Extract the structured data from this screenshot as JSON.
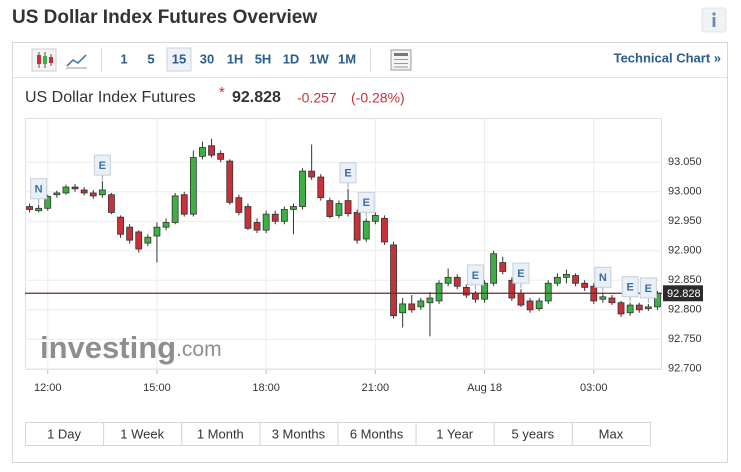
{
  "page_title": "US Dollar Index Futures Overview",
  "toolbar": {
    "intervals": [
      "1",
      "5",
      "15",
      "30",
      "1H",
      "5H",
      "1D",
      "1W",
      "1M"
    ],
    "active": "15",
    "link": "Technical Chart »"
  },
  "quote": {
    "name": "US Dollar Index Futures",
    "marker": "*",
    "change": -0.257,
    "change_pct": "(-0.28%)"
  },
  "watermark": [
    "investing",
    ".com"
  ],
  "ranges": [
    "1 Day",
    "1 Week",
    "1 Month",
    "3 Months",
    "6 Months",
    "1 Year",
    "5 years",
    "Max"
  ],
  "chart_data": {
    "type": "candlestick",
    "categories": [
      null,
      null,
      "12:00",
      null,
      null,
      null,
      null,
      null,
      null,
      null,
      null,
      null,
      null,
      null,
      "15:00",
      null,
      null,
      null,
      null,
      null,
      null,
      null,
      null,
      null,
      null,
      null,
      "18:00",
      null,
      null,
      null,
      null,
      null,
      null,
      null,
      null,
      null,
      null,
      null,
      "21:00",
      null,
      null,
      null,
      null,
      null,
      null,
      null,
      null,
      null,
      null,
      null,
      "Aug 18",
      null,
      null,
      null,
      null,
      null,
      null,
      null,
      null,
      null,
      null,
      null,
      "03:00",
      null,
      null,
      null,
      null,
      null,
      null,
      null
    ],
    "open": [
      92.975,
      92.968,
      92.972,
      92.995,
      92.998,
      93.008,
      93.003,
      92.998,
      92.995,
      92.995,
      92.957,
      92.94,
      92.932,
      92.913,
      92.925,
      92.94,
      92.948,
      92.995,
      92.962,
      93.06,
      93.078,
      93.065,
      93.052,
      92.99,
      92.975,
      92.948,
      92.935,
      92.962,
      92.95,
      92.97,
      92.975,
      93.035,
      93.025,
      92.985,
      92.96,
      92.985,
      92.965,
      92.92,
      92.95,
      92.955,
      92.91,
      92.795,
      92.81,
      92.805,
      92.812,
      92.815,
      92.845,
      92.855,
      92.838,
      92.828,
      92.818,
      92.845,
      92.88,
      92.85,
      92.828,
      92.815,
      92.802,
      92.815,
      92.845,
      92.855,
      92.858,
      92.845,
      92.84,
      92.818,
      92.82,
      92.812,
      92.795,
      92.808,
      92.802,
      92.805
    ],
    "high": [
      92.98,
      92.978,
      92.995,
      93.002,
      93.012,
      93.013,
      93.008,
      93.003,
      93.018,
      92.998,
      92.96,
      92.945,
      92.935,
      92.928,
      92.948,
      92.955,
      92.998,
      93.0,
      93.07,
      93.085,
      93.09,
      93.07,
      93.055,
      92.995,
      92.98,
      92.955,
      92.968,
      92.968,
      92.975,
      92.98,
      93.04,
      93.08,
      93.03,
      92.99,
      92.985,
      93.005,
      92.97,
      92.955,
      92.965,
      92.96,
      92.915,
      92.82,
      92.825,
      92.82,
      92.83,
      92.85,
      92.87,
      92.86,
      92.843,
      92.832,
      92.85,
      92.9,
      92.89,
      92.855,
      92.835,
      92.82,
      92.82,
      92.85,
      92.862,
      92.868,
      92.862,
      92.85,
      92.845,
      92.828,
      92.825,
      92.815,
      92.812,
      92.812,
      92.81,
      92.832
    ],
    "low": [
      92.965,
      92.965,
      92.968,
      92.99,
      92.995,
      93.0,
      92.994,
      92.988,
      92.99,
      92.962,
      92.922,
      92.912,
      92.897,
      92.908,
      92.88,
      92.935,
      92.945,
      92.958,
      92.958,
      93.055,
      93.058,
      93.05,
      92.978,
      92.96,
      92.935,
      92.93,
      92.93,
      92.945,
      92.945,
      92.928,
      92.97,
      93.02,
      92.985,
      92.955,
      92.955,
      92.958,
      92.912,
      92.915,
      92.945,
      92.91,
      92.785,
      92.77,
      92.795,
      92.8,
      92.755,
      92.81,
      92.84,
      92.835,
      92.82,
      92.812,
      92.812,
      92.84,
      92.86,
      92.815,
      92.805,
      92.795,
      92.798,
      92.81,
      92.84,
      92.845,
      92.84,
      92.832,
      92.81,
      92.812,
      92.808,
      92.788,
      92.79,
      92.795,
      92.798,
      92.8
    ],
    "close": [
      92.97,
      92.972,
      92.992,
      92.998,
      93.008,
      93.005,
      92.998,
      92.993,
      93.003,
      92.965,
      92.928,
      92.918,
      92.903,
      92.923,
      92.94,
      92.948,
      92.993,
      92.962,
      93.058,
      93.075,
      93.062,
      93.055,
      92.982,
      92.965,
      92.938,
      92.935,
      92.962,
      92.95,
      92.97,
      92.975,
      93.035,
      93.025,
      92.99,
      92.958,
      92.98,
      92.963,
      92.918,
      92.95,
      92.96,
      92.915,
      92.79,
      92.81,
      92.8,
      92.815,
      92.82,
      92.845,
      92.855,
      92.84,
      92.825,
      92.818,
      92.845,
      92.895,
      92.865,
      92.82,
      92.808,
      92.8,
      92.815,
      92.845,
      92.855,
      92.86,
      92.845,
      92.838,
      92.815,
      92.822,
      92.812,
      92.793,
      92.808,
      92.8,
      92.805,
      92.828
    ],
    "events": [
      null,
      "N",
      null,
      null,
      null,
      null,
      null,
      null,
      "E",
      null,
      null,
      null,
      null,
      null,
      null,
      null,
      null,
      null,
      null,
      null,
      null,
      null,
      null,
      null,
      null,
      null,
      null,
      null,
      null,
      null,
      null,
      null,
      null,
      null,
      null,
      "E",
      null,
      "E",
      null,
      null,
      null,
      null,
      null,
      null,
      null,
      null,
      null,
      null,
      null,
      "E",
      null,
      null,
      null,
      null,
      "E",
      null,
      null,
      null,
      null,
      null,
      null,
      null,
      null,
      "N",
      null,
      null,
      "E",
      null,
      "E",
      null
    ],
    "last_price": 92.828,
    "up_color": "#3cb043",
    "down_color": "#c8303a",
    "last_line_color": "#6b2a2a",
    "ylim": [
      92.698,
      93.125
    ],
    "yticks": [
      {
        "value": 93.05,
        "label": "93.050"
      },
      {
        "value": 93.0,
        "label": "93.000"
      },
      {
        "value": 92.95,
        "label": "92.950"
      },
      {
        "value": 92.9,
        "label": "92.900"
      },
      {
        "value": 92.85,
        "label": "92.850"
      },
      {
        "value": 92.8,
        "label": "92.800"
      },
      {
        "value": 92.75,
        "label": "92.750"
      },
      {
        "value": 92.7,
        "label": "92.700"
      }
    ],
    "grid": true
  }
}
